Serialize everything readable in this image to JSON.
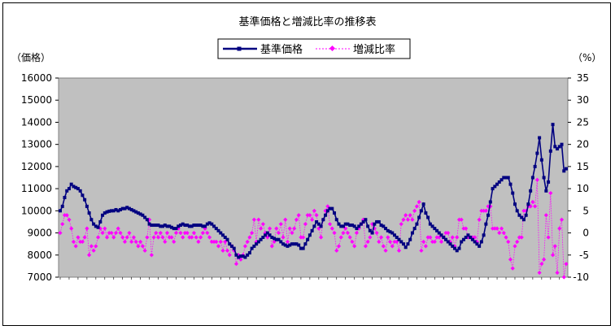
{
  "chart_data": {
    "type": "line",
    "title": "基準価格と増減比率の推移表",
    "y_left_label": "（価格）",
    "y_right_label": "（%）",
    "y_left_range": [
      7000,
      16000
    ],
    "y_left_ticks": [
      "16000",
      "15000",
      "14000",
      "13000",
      "12000",
      "11000",
      "10000",
      "9000",
      "8000",
      "7000"
    ],
    "y_right_range": [
      -10,
      35
    ],
    "y_right_ticks": [
      "35",
      "30",
      "25",
      "20",
      "15",
      "10",
      "5",
      "0",
      "-5",
      "-10"
    ],
    "grid": false,
    "legend_position": "top-center",
    "colors": {
      "plot_bg": "#c0c0c0",
      "price": "#000080",
      "ratio": "#ff00ff"
    },
    "series": [
      {
        "name": "基準価格",
        "axis": "left",
        "values": [
          10000,
          10200,
          10600,
          10900,
          11000,
          11200,
          11100,
          11050,
          11000,
          10900,
          10700,
          10500,
          10200,
          9900,
          9600,
          9400,
          9300,
          9250,
          9500,
          9800,
          9900,
          9950,
          9980,
          10000,
          10000,
          10050,
          10000,
          10050,
          10100,
          10100,
          10150,
          10100,
          10050,
          10000,
          9950,
          9900,
          9850,
          9800,
          9700,
          9600,
          9400,
          9350,
          9350,
          9350,
          9350,
          9300,
          9300,
          9350,
          9300,
          9300,
          9250,
          9200,
          9200,
          9300,
          9350,
          9400,
          9350,
          9350,
          9300,
          9300,
          9350,
          9350,
          9350,
          9350,
          9300,
          9300,
          9400,
          9450,
          9400,
          9300,
          9200,
          9100,
          9000,
          8900,
          8800,
          8700,
          8500,
          8400,
          8300,
          8000,
          7900,
          7950,
          7950,
          7900,
          8000,
          8100,
          8300,
          8400,
          8500,
          8600,
          8700,
          8800,
          8900,
          9000,
          8900,
          8800,
          8750,
          8700,
          8700,
          8600,
          8500,
          8450,
          8400,
          8450,
          8500,
          8500,
          8500,
          8450,
          8300,
          8300,
          8500,
          8700,
          8900,
          9100,
          9300,
          9500,
          9400,
          9300,
          9600,
          9800,
          10000,
          10100,
          10100,
          9900,
          9600,
          9400,
          9300,
          9300,
          9400,
          9400,
          9350,
          9350,
          9300,
          9200,
          9300,
          9400,
          9500,
          9600,
          9300,
          9100,
          9000,
          9400,
          9500,
          9500,
          9350,
          9300,
          9200,
          9100,
          9050,
          9000,
          8900,
          8800,
          8700,
          8600,
          8500,
          8350,
          8500,
          8700,
          9000,
          9200,
          9400,
          9700,
          10000,
          10300,
          9900,
          9700,
          9400,
          9300,
          9200,
          9100,
          9000,
          8900,
          8800,
          8700,
          8600,
          8500,
          8400,
          8300,
          8200,
          8300,
          8600,
          8700,
          8800,
          8900,
          8800,
          8700,
          8600,
          8500,
          8400,
          8600,
          8900,
          9400,
          9800,
          10400,
          11000,
          11100,
          11200,
          11300,
          11400,
          11500,
          11500,
          11500,
          11200,
          10800,
          10300,
          10000,
          9800,
          9700,
          9600,
          9800,
          10300,
          10900,
          11500,
          12000,
          12600,
          13300,
          12300,
          11500,
          10900,
          11300,
          12700,
          13900,
          12900,
          12800,
          12900,
          13000,
          11800,
          11900
        ]
      },
      {
        "name": "増減比率",
        "axis": "right",
        "values": [
          0,
          2,
          4,
          4,
          3,
          1,
          -2,
          -3,
          -1,
          -2,
          -2,
          -1,
          1,
          -5,
          -3,
          -4,
          -3,
          -1,
          1,
          0,
          1,
          -1,
          0,
          0,
          -1,
          0,
          1,
          0,
          -1,
          -2,
          -1,
          0,
          -2,
          -1,
          -2,
          -3,
          -2,
          -3,
          -4,
          -1,
          3,
          -5,
          -1,
          0,
          -1,
          0,
          -1,
          -2,
          0,
          -1,
          -1,
          -2,
          0,
          1,
          0,
          -1,
          0,
          0,
          -1,
          -1,
          0,
          -1,
          -2,
          -1,
          0,
          1,
          0,
          -1,
          -2,
          -2,
          -2,
          -3,
          -2,
          -4,
          -2,
          -4,
          -5,
          -3,
          -4,
          -7,
          -5,
          -6,
          -5,
          -3,
          -2,
          -1,
          0,
          3,
          -2,
          3,
          1,
          2,
          0,
          -1,
          1,
          -3,
          -2,
          1,
          0,
          2,
          -1,
          3,
          -2,
          1,
          0,
          1,
          3,
          4,
          -1,
          -1,
          2,
          4,
          4,
          3,
          5,
          4,
          1,
          -1,
          3,
          5,
          6,
          2,
          1,
          0,
          -4,
          -3,
          -1,
          0,
          1,
          0,
          -1,
          -2,
          -3,
          0,
          1,
          2,
          3,
          -3,
          -2,
          -1,
          2,
          1,
          0,
          -2,
          -1,
          -3,
          -4,
          -1,
          -2,
          -3,
          -2,
          -2,
          -4,
          2,
          3,
          4,
          3,
          4,
          3,
          5,
          6,
          7,
          -4,
          -2,
          -3,
          -1,
          -1,
          -2,
          -2,
          -1,
          -1,
          -2,
          -1,
          0,
          0,
          -2,
          -1,
          -3,
          -1,
          3,
          3,
          1,
          1,
          -1,
          -1,
          -1,
          -1,
          -2,
          3,
          5,
          5,
          5,
          6,
          6,
          1,
          1,
          1,
          0,
          1,
          0,
          -1,
          -2,
          -6,
          -8,
          -3,
          -2,
          -1,
          -1,
          5,
          5,
          6,
          6,
          7,
          6,
          12,
          -9,
          -7,
          -6,
          4,
          -1,
          9,
          -5,
          -3,
          -9,
          1,
          3,
          -10,
          -7
        ]
      }
    ]
  }
}
